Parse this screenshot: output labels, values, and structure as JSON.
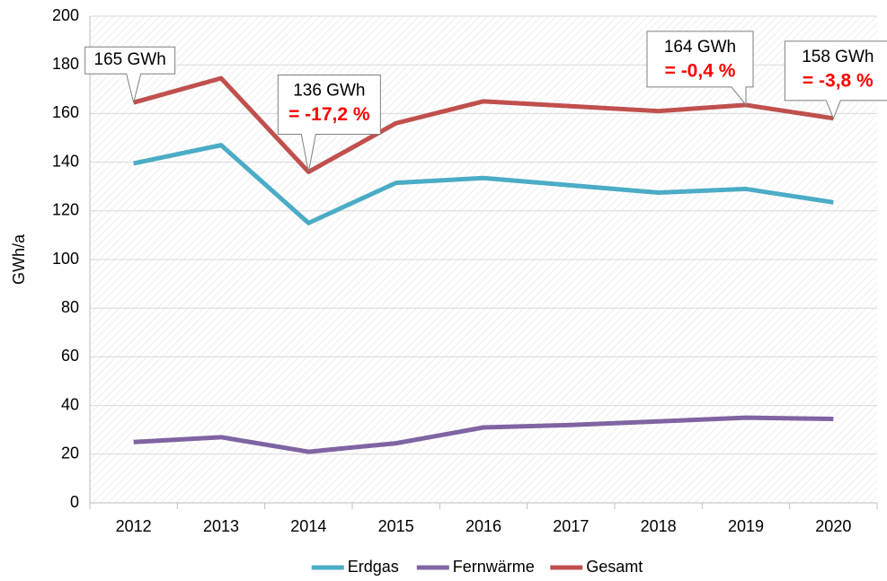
{
  "chart_data": {
    "type": "line",
    "y_label": "GWh/a",
    "categories": [
      "2012",
      "2013",
      "2014",
      "2015",
      "2016",
      "2017",
      "2018",
      "2019",
      "2020"
    ],
    "series": [
      {
        "name": "Erdgas",
        "color": "#4bacc6",
        "values": [
          139.5,
          147,
          115,
          131.5,
          133.5,
          130.5,
          127.5,
          129,
          123.5
        ]
      },
      {
        "name": "Fernwärme",
        "color": "#8064a2",
        "values": [
          25,
          27,
          21,
          24.5,
          31,
          32,
          33.5,
          35,
          34.5
        ]
      },
      {
        "name": "Gesamt",
        "color": "#c0504d",
        "values": [
          164.5,
          174.5,
          136,
          156,
          165,
          163,
          161,
          163.5,
          158
        ]
      }
    ],
    "ylim": [
      0,
      200
    ],
    "yticks": [
      0,
      20,
      40,
      60,
      80,
      100,
      120,
      140,
      160,
      180,
      200
    ],
    "grid": true,
    "legend": "bottom",
    "annotations": [
      {
        "category": "2012",
        "text": "165 GWh"
      },
      {
        "category": "2014",
        "text": "136 GWh",
        "change": "= -17,2 %"
      },
      {
        "category": "2019",
        "text": "164 GWh",
        "change": "= -0,4 %"
      },
      {
        "category": "2020",
        "text": "158 GWh",
        "change": "= -3,8 %"
      }
    ]
  }
}
